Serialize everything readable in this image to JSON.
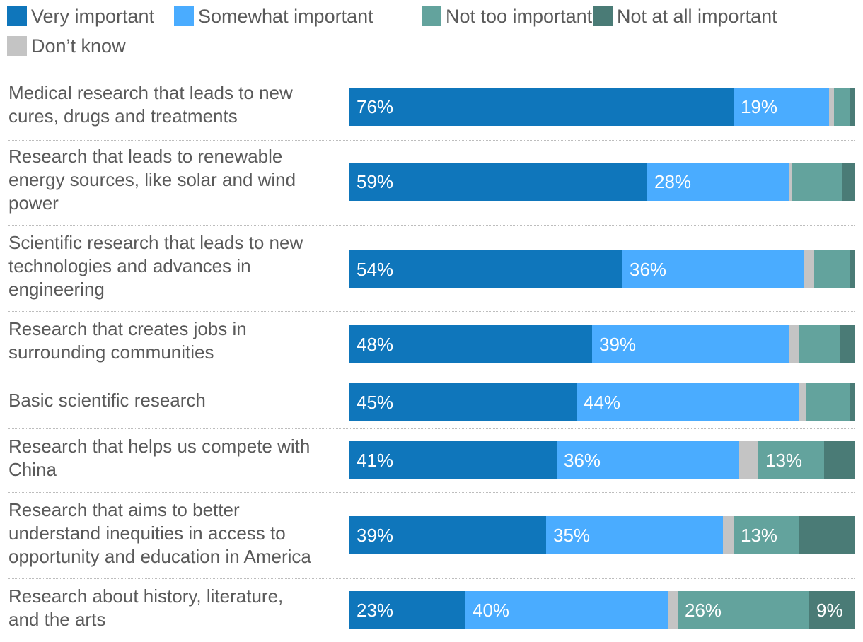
{
  "chart_data": {
    "type": "bar",
    "orientation": "horizontal",
    "stacked": true,
    "title": "",
    "xlabel": "",
    "ylabel": "",
    "xlim": [
      0,
      100
    ],
    "grid": false,
    "legend_position": "top-left",
    "categories": [
      "Medical research that leads to new cures, drugs and treatments",
      "Research that leads to renewable energy sources, like solar and wind power",
      "Scientific research that leads to new technologies and advances in engineering",
      "Research that creates jobs in surrounding communities",
      "Basic scientific research",
      "Research that helps us compete with China",
      "Research that aims to better understand inequities in access to opportunity and education in America",
      "Research about history, literature, and the arts"
    ],
    "series": [
      {
        "name": "Very important",
        "color": "#0f76bb",
        "values": [
          76,
          59,
          54,
          48,
          45,
          41,
          39,
          23
        ],
        "labels": [
          "76%",
          "59%",
          "54%",
          "48%",
          "45%",
          "41%",
          "39%",
          "23%"
        ]
      },
      {
        "name": "Somewhat important",
        "color": "#4aacff",
        "values": [
          19,
          28,
          36,
          39,
          44,
          36,
          35,
          40
        ],
        "labels": [
          "19%",
          "28%",
          "36%",
          "39%",
          "44%",
          "36%",
          "35%",
          "40%"
        ]
      },
      {
        "name": "Don’t know",
        "color": "#c4c4c4",
        "values": [
          1,
          0.5,
          2,
          2,
          1.5,
          4,
          2,
          2
        ],
        "labels": [
          "",
          "",
          "",
          "",
          "",
          "",
          "",
          ""
        ]
      },
      {
        "name": "Not too important",
        "color": "#63a39d",
        "values": [
          3,
          10,
          7,
          8,
          8.5,
          13,
          13,
          26
        ],
        "labels": [
          "",
          "",
          "",
          "",
          "",
          "13%",
          "13%",
          "26%"
        ]
      },
      {
        "name": "Not at all important",
        "color": "#4a7b76",
        "values": [
          1,
          2.5,
          1,
          3,
          1,
          6,
          11,
          9
        ],
        "labels": [
          "",
          "",
          "",
          "",
          "",
          "",
          "",
          "9%"
        ]
      }
    ]
  },
  "legend": [
    {
      "label": "Very important",
      "color": "#0f76bb"
    },
    {
      "label": "Somewhat important",
      "color": "#4aacff"
    },
    {
      "label": "Not too important",
      "color": "#63a39d"
    },
    {
      "label": "Not at all important",
      "color": "#4a7b76"
    },
    {
      "label": "Don’t know",
      "color": "#c4c4c4"
    }
  ],
  "row_label_lines": [
    [
      "Medical research that leads to new",
      "cures, drugs and treatments"
    ],
    [
      "Research that leads to renewable",
      "energy sources, like solar and wind",
      "power"
    ],
    [
      "Scientific research that leads to new",
      "technologies and advances in",
      "engineering"
    ],
    [
      "Research that creates jobs in",
      "surrounding communities"
    ],
    [
      "Basic scientific research"
    ],
    [
      "Research that helps us compete with",
      "China"
    ],
    [
      "Research that aims to better",
      "understand inequities in access to",
      "opportunity and education in America"
    ],
    [
      "Research about history, literature,",
      "and the arts"
    ]
  ]
}
